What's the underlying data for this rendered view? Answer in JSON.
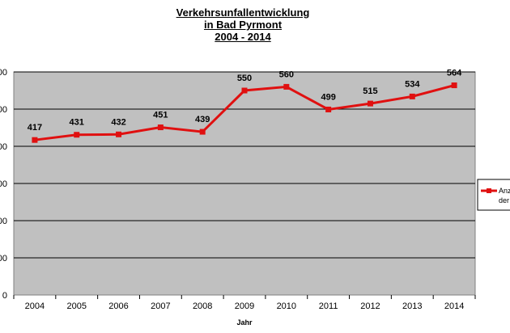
{
  "chart_data": {
    "type": "line",
    "title": [
      "Verkehrsunfallentwicklung",
      "in Bad Pyrmont",
      "2004 - 2014"
    ],
    "xlabel": "Jahr",
    "ylabel": "",
    "categories": [
      "2004",
      "2005",
      "2006",
      "2007",
      "2008",
      "2009",
      "2010",
      "2011",
      "2012",
      "2013",
      "2014"
    ],
    "series": [
      {
        "name": "Anz der",
        "color": "#e01010",
        "marker": "square",
        "values": [
          417,
          431,
          432,
          451,
          439,
          550,
          560,
          499,
          515,
          534,
          564
        ]
      }
    ],
    "ylim": [
      0,
      600
    ],
    "ystep": 100,
    "ytick_labels_visible": "clipped",
    "grid": true,
    "plot_background": "#c0c0c0",
    "legend_position": "right"
  }
}
